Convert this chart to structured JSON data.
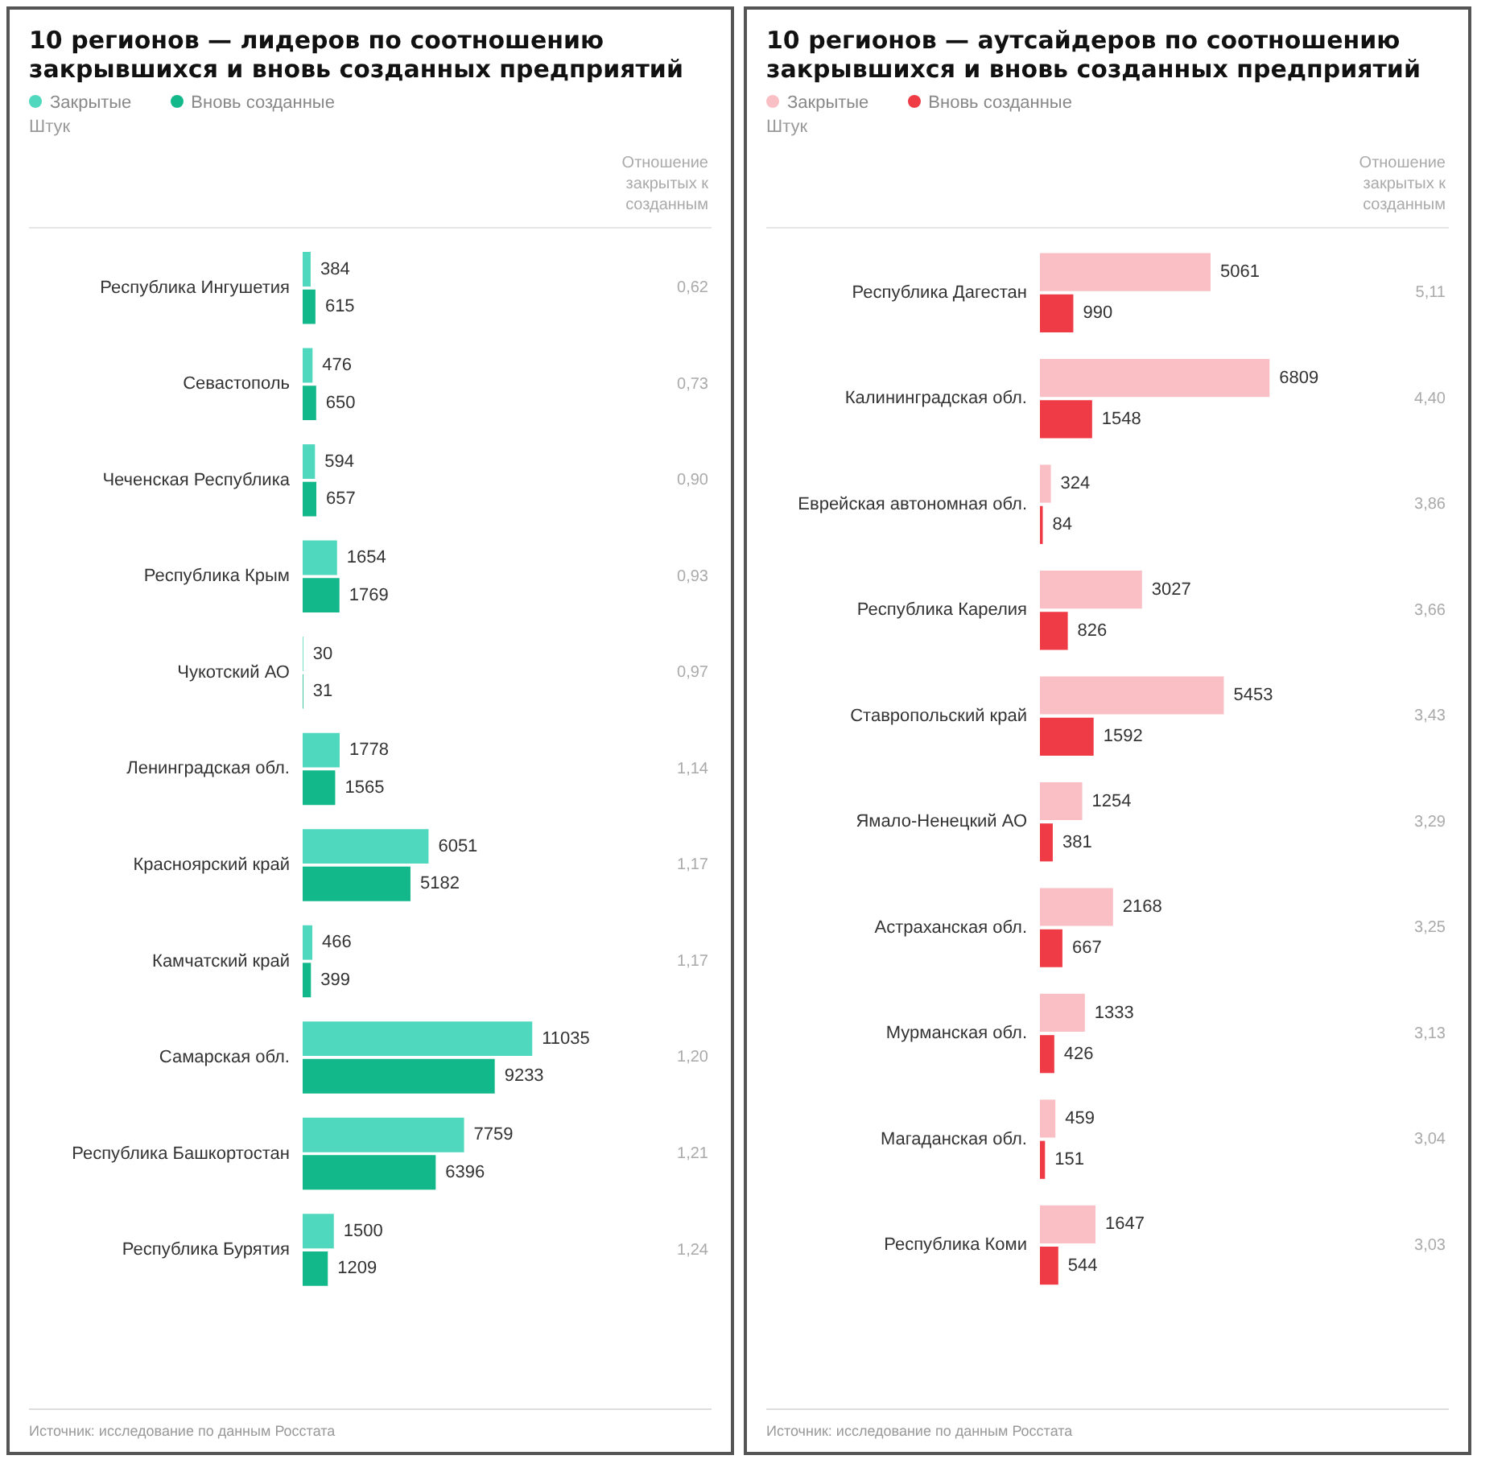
{
  "chart_data": [
    {
      "type": "bar",
      "orientation": "horizontal",
      "title": "10 регионов — лидеров по соотношению закрывшихся и вновь созданных предприятий",
      "subtitle": "Штук",
      "legend": "top left",
      "tick_labels": "y",
      "data_labels": true,
      "categories": [
        "Республика Ингушетия",
        "Севастополь",
        "Чеченская Республика",
        "Республика Крым",
        "Чукотский АО",
        "Ленинградская обл.",
        "Красноярский край",
        "Камчатский край",
        "Самарская обл.",
        "Республика Башкортостан",
        "Республика Бурятия"
      ],
      "series": [
        {
          "name": "Закрытые",
          "color": "#4fd8bd",
          "values": [
            384,
            476,
            594,
            1654,
            30,
            1778,
            6051,
            466,
            11035,
            7759,
            1500
          ]
        },
        {
          "name": "Вновь созданные",
          "color": "#13b88a",
          "values": [
            615,
            650,
            657,
            1769,
            31,
            1565,
            5182,
            399,
            9233,
            6396,
            1209
          ]
        }
      ],
      "annotations": [
        "Отношение закрытых к созданным",
        "0,62",
        "0,73",
        "0,90",
        "0,93",
        "0,97",
        "1,14",
        "1,17",
        "1,17",
        "1,20",
        "1,21",
        "1,24",
        "Источник: исследование по данным Росстата"
      ]
    },
    {
      "type": "bar",
      "orientation": "horizontal",
      "title": "10 регионов — аутсайдеров по соотношению закрывшихся и вновь созданных предприятий",
      "subtitle": "Штук",
      "legend": "top left",
      "tick_labels": "y",
      "data_labels": true,
      "categories": [
        "Республика Дагестан",
        "Калининградская обл.",
        "Еврейская автономная обл.",
        "Республика Карелия",
        "Ставропольский край",
        "Ямало-Ненецкий АО",
        "Астраханская обл.",
        "Мурманская обл.",
        "Магаданская обл.",
        "Республика Коми"
      ],
      "series": [
        {
          "name": "Закрытые",
          "color": "#f9bfc4",
          "values": [
            5061,
            6809,
            324,
            3027,
            5453,
            1254,
            2168,
            1333,
            459,
            1647
          ]
        },
        {
          "name": "Вновь созданные",
          "color": "#ee3b45",
          "values": [
            990,
            1548,
            84,
            826,
            1592,
            381,
            667,
            426,
            151,
            544
          ]
        }
      ],
      "annotations": [
        "Отношение закрытых к созданным",
        "5,11",
        "4,40",
        "3,86",
        "3,66",
        "3,43",
        "3,29",
        "3,25",
        "3,13",
        "3,04",
        "3,03",
        "Источник: исследование по данным Росстата"
      ]
    }
  ]
}
